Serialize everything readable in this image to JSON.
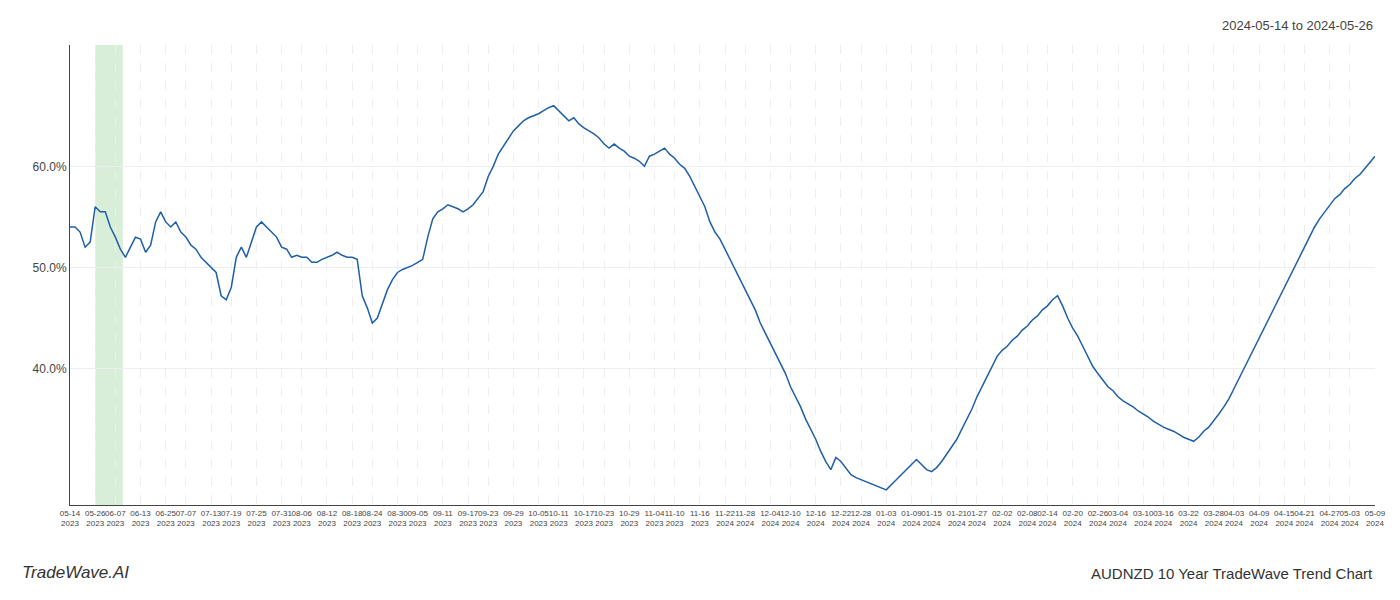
{
  "chart_data": {
    "type": "line",
    "title": "AUDNZD 10 Year TradeWave Trend Chart",
    "subtitle": "2024-05-14 to 2024-05-26",
    "annotations": [
      "TradeWave.AI"
    ],
    "color": "#1f5fa6",
    "grid": true,
    "ylim": [
      0.265,
      0.72
    ],
    "yticks": [
      {
        "value": 0.4,
        "label": "40.0%"
      },
      {
        "value": 0.5,
        "label": "50.0%"
      },
      {
        "value": 0.6,
        "label": "60.0%"
      }
    ],
    "categories": [
      "05-14\n2023",
      null,
      null,
      null,
      null,
      "05-26\n2023",
      null,
      null,
      null,
      "06-07\n2023",
      null,
      null,
      null,
      null,
      "06-13\n2023",
      null,
      null,
      null,
      null,
      "06-25\n2023",
      null,
      null,
      null,
      "07-07\n2023",
      null,
      null,
      null,
      null,
      "07-13\n2023",
      null,
      null,
      null,
      "07-19\n2023",
      null,
      null,
      null,
      null,
      "07-25\n2023",
      null,
      null,
      null,
      null,
      "07-31\n2023",
      null,
      null,
      null,
      "08-06\n2023",
      null,
      null,
      null,
      null,
      "08-12\n2023",
      null,
      null,
      null,
      null,
      "08-18\n2023",
      null,
      null,
      null,
      "08-24\n2023",
      null,
      null,
      null,
      null,
      "08-30\n2023",
      null,
      null,
      null,
      "09-05\n2023",
      null,
      null,
      null,
      null,
      "09-11\n2023",
      null,
      null,
      null,
      null,
      "09-17\n2023",
      null,
      null,
      null,
      "09-23\n2023",
      null,
      null,
      null,
      null,
      "09-29\n2023",
      null,
      null,
      null,
      null,
      "10-05\n2023",
      null,
      null,
      null,
      "10-11\n2023",
      null,
      null,
      null,
      null,
      "10-17\n2023",
      null,
      null,
      null,
      "10-23\n2023",
      null,
      null,
      null,
      null,
      "10-29\n2023",
      null,
      null,
      null,
      null,
      "11-04\n2023",
      null,
      null,
      null,
      "11-10\n2023",
      null,
      null,
      null,
      null,
      "11-16\n2023",
      null,
      null,
      null,
      null,
      "11-22\n2024",
      null,
      null,
      null,
      "11-28\n2024",
      null,
      null,
      null,
      null,
      "12-04\n2024",
      null,
      null,
      null,
      "12-10\n2024",
      null,
      null,
      null,
      null,
      "12-16\n2024",
      null,
      null,
      null,
      null,
      "12-22\n2024",
      null,
      null,
      null,
      "12-28\n2024",
      null,
      null,
      null,
      null,
      "01-03\n2024",
      null,
      null,
      null,
      null,
      "01-09\n2024",
      null,
      null,
      null,
      "01-15\n2024",
      null,
      null,
      null,
      null,
      "01-21\n2024",
      null,
      null,
      null,
      "01-27\n2024",
      null,
      null,
      null,
      null,
      "02-02\n2024",
      null,
      null,
      null,
      null,
      "02-08\n2024",
      null,
      null,
      null,
      "02-14\n2024",
      null,
      null,
      null,
      null,
      "02-20\n2024",
      null,
      null,
      null,
      null,
      "02-26\n2024",
      null,
      null,
      null,
      "03-04\n2024",
      null,
      null,
      null,
      null,
      "03-10\n2024",
      null,
      null,
      null,
      "03-16\n2024",
      null,
      null,
      null,
      null,
      "03-22\n2024",
      null,
      null,
      null,
      null,
      "03-28\n2024",
      null,
      null,
      null,
      "04-03\n2024",
      null,
      null,
      null,
      null,
      "04-09\n2024",
      null,
      null,
      null,
      null,
      "04-15\n2024",
      null,
      null,
      null,
      "04-21\n2024",
      null,
      null,
      null,
      null,
      "04-27\n2024",
      null,
      null,
      null,
      "05-03\n2024",
      null,
      null,
      null,
      null,
      "05-09\n2024"
    ],
    "values": [
      0.54,
      0.54,
      0.535,
      0.52,
      0.525,
      0.56,
      0.555,
      0.555,
      0.54,
      0.53,
      0.518,
      0.51,
      0.52,
      0.53,
      0.528,
      0.515,
      0.522,
      0.545,
      0.555,
      0.545,
      0.54,
      0.545,
      0.535,
      0.53,
      0.522,
      0.518,
      0.51,
      0.505,
      0.5,
      0.495,
      0.472,
      0.468,
      0.48,
      0.51,
      0.52,
      0.51,
      0.525,
      0.54,
      0.545,
      0.54,
      0.535,
      0.53,
      0.52,
      0.518,
      0.51,
      0.512,
      0.51,
      0.51,
      0.505,
      0.505,
      0.508,
      0.51,
      0.512,
      0.515,
      0.512,
      0.51,
      0.51,
      0.508,
      0.472,
      0.46,
      0.445,
      0.45,
      0.465,
      0.478,
      0.488,
      0.495,
      0.498,
      0.5,
      0.502,
      0.505,
      0.508,
      0.53,
      0.548,
      0.555,
      0.558,
      0.562,
      0.56,
      0.558,
      0.555,
      0.558,
      0.562,
      0.568,
      0.575,
      0.59,
      0.6,
      0.612,
      0.62,
      0.628,
      0.635,
      0.64,
      0.645,
      0.648,
      0.65,
      0.652,
      0.655,
      0.658,
      0.66,
      0.655,
      0.65,
      0.645,
      0.648,
      0.642,
      0.638,
      0.635,
      0.632,
      0.628,
      0.622,
      0.618,
      0.622,
      0.618,
      0.615,
      0.61,
      0.608,
      0.605,
      0.6,
      0.61,
      0.612,
      0.615,
      0.618,
      0.612,
      0.608,
      0.602,
      0.598,
      0.59,
      0.58,
      0.57,
      0.56,
      0.545,
      0.535,
      0.528,
      0.518,
      0.508,
      0.498,
      0.488,
      0.478,
      0.468,
      0.458,
      0.445,
      0.435,
      0.425,
      0.415,
      0.405,
      0.395,
      0.382,
      0.372,
      0.362,
      0.35,
      0.34,
      0.33,
      0.318,
      0.308,
      0.3,
      0.312,
      0.308,
      0.302,
      0.295,
      0.292,
      0.29,
      0.288,
      0.286,
      0.284,
      0.282,
      0.28,
      0.285,
      0.29,
      0.295,
      0.3,
      0.305,
      0.31,
      0.305,
      0.3,
      0.298,
      0.302,
      0.308,
      0.315,
      0.322,
      0.33,
      0.34,
      0.35,
      0.36,
      0.372,
      0.382,
      0.392,
      0.402,
      0.412,
      0.418,
      0.422,
      0.428,
      0.432,
      0.438,
      0.442,
      0.448,
      0.452,
      0.458,
      0.462,
      0.468,
      0.472,
      0.462,
      0.45,
      0.44,
      0.432,
      0.422,
      0.412,
      0.402,
      0.395,
      0.388,
      0.382,
      0.378,
      0.372,
      0.368,
      0.365,
      0.362,
      0.358,
      0.355,
      0.352,
      0.348,
      0.345,
      0.342,
      0.34,
      0.338,
      0.335,
      0.332,
      0.33,
      0.328,
      0.332,
      0.338,
      0.342,
      0.348,
      0.355,
      0.362,
      0.37,
      0.38,
      0.39,
      0.4,
      0.41,
      0.42,
      0.43,
      0.44,
      0.45,
      0.46,
      0.47,
      0.48,
      0.49,
      0.5,
      0.51,
      0.52,
      0.53,
      0.54,
      0.548,
      0.555,
      0.562,
      0.568,
      0.572,
      0.578,
      0.582,
      0.588,
      0.592,
      0.598,
      0.605,
      0.61
    ]
  }
}
